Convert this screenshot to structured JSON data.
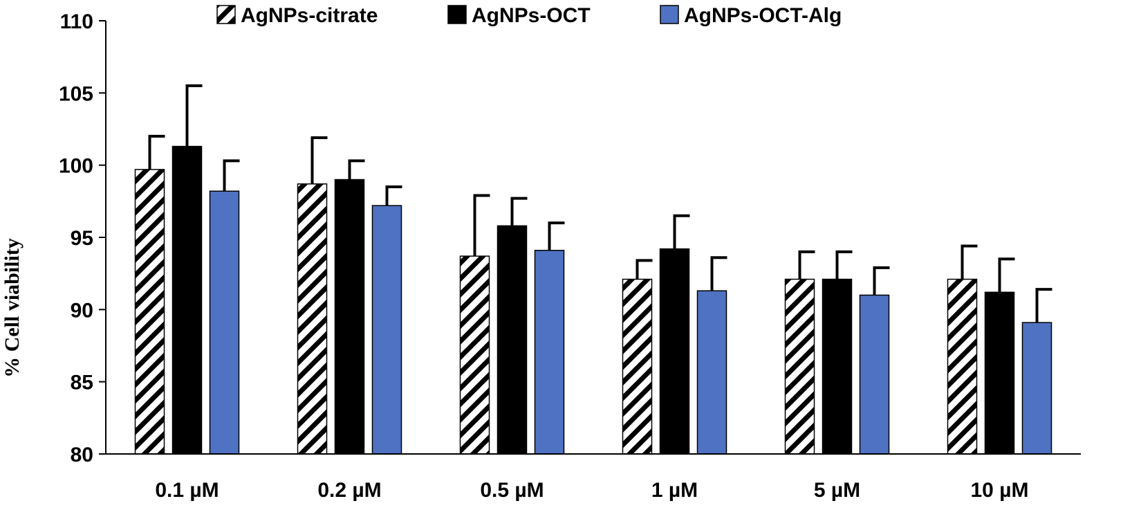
{
  "chart_data": {
    "type": "bar",
    "title": "",
    "xlabel": "",
    "ylabel": "% Cell viability",
    "ylim": [
      80,
      110
    ],
    "yticks": [
      80,
      85,
      90,
      95,
      100,
      105,
      110
    ],
    "grid": false,
    "legend_position": "top",
    "categories": [
      "0.1 µM",
      "0.2 µM",
      "0.5 µM",
      "1 µM",
      "5 µM",
      "10 µM"
    ],
    "series": [
      {
        "name": "AgNPs-citrate",
        "fill": "hatch",
        "values": [
          99.7,
          98.7,
          93.7,
          92.1,
          92.1,
          92.1
        ],
        "errors": [
          2.3,
          3.2,
          4.2,
          1.3,
          1.9,
          2.3
        ]
      },
      {
        "name": "AgNPs-OCT",
        "fill": "#000000",
        "values": [
          101.3,
          99.0,
          95.8,
          94.2,
          92.1,
          91.2
        ],
        "errors": [
          4.2,
          1.3,
          1.9,
          2.3,
          1.9,
          2.3
        ]
      },
      {
        "name": "AgNPs-OCT-Alg",
        "fill": "#4f72c2",
        "values": [
          98.2,
          97.2,
          94.1,
          91.3,
          91.0,
          89.1
        ],
        "errors": [
          2.1,
          1.3,
          1.9,
          2.3,
          1.9,
          2.3
        ]
      }
    ]
  }
}
